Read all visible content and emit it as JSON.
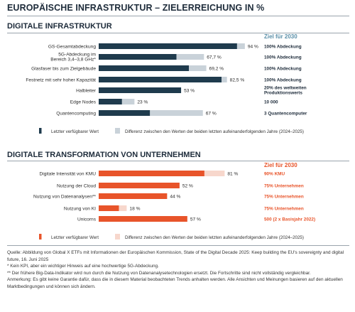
{
  "title": "EUROPÄISCHE INFRASTRUKTUR – ZIELERREICHUNG IN %",
  "colors": {
    "infra_dark": "#1f3b4d",
    "infra_light": "#c9d2d9",
    "infra_goal_head": "#5a8fa8",
    "infra_goal_text": "#1d2b3a",
    "trans_dark": "#e8542a",
    "trans_light": "#f7d7cc",
    "trans_goal": "#e8542a"
  },
  "chart_data": [
    {
      "type": "bar",
      "orientation": "horizontal",
      "stacked": true,
      "title": "DIGITALE INFRASTRUKTUR",
      "goal_header": "Ziel für 2030",
      "xlim": [
        0,
        100
      ],
      "categories": [
        "GS-Gesamtabdeckung",
        "5G-Abdeckung im Bereich 3,4–3,8 GHz*",
        "Glasfaser bis zum Zielgebäude",
        "Festnetz mit sehr hoher Kapazität",
        "Halbleiter",
        "Edge Nodes",
        "Quantencomputing"
      ],
      "category_lines": [
        [
          "GS-Gesamtabdeckung"
        ],
        [
          "5G-Abdeckung im",
          "Bereich 3,4–3,8 GHz*"
        ],
        [
          "Glasfaser bis zum Zielgebäude"
        ],
        [
          "Festnetz mit sehr hoher Kapazität"
        ],
        [
          "Halbleiter"
        ],
        [
          "Edge Nodes"
        ],
        [
          "Quantencomputing"
        ]
      ],
      "series": [
        {
          "name": "Letzter verfügbarer Wert",
          "values": [
            89,
            50,
            58,
            79,
            53,
            15,
            33
          ]
        },
        {
          "name": "Differenz zwischen den Werten der beiden letzten aufeinanderfolgenden Jahre (2024–2025)",
          "values": [
            5,
            17.7,
            11.2,
            3.5,
            0,
            8,
            34
          ]
        }
      ],
      "value_labels": [
        "94 %",
        "67,7 %",
        "69,2 %",
        "82,5 %",
        "53 %",
        "23 %",
        "67 %"
      ],
      "goals": [
        [
          "100% Abdeckung"
        ],
        [
          "100% Abdeckung"
        ],
        [
          "100% Abdeckung"
        ],
        [
          "100% Abdeckung"
        ],
        [
          "20% des weltweiten",
          "Produktionswerts"
        ],
        [
          "10 000"
        ],
        [
          "3 Quantencomputer"
        ]
      ],
      "legend": [
        "Letzter verfügbarer Wert",
        "Differenz zwischen den Werten der beiden letzten aufeinanderfolgenden Jahre (2024–2025)"
      ]
    },
    {
      "type": "bar",
      "orientation": "horizontal",
      "stacked": true,
      "title": "DIGITALE TRANSFORMATION VON UNTERNEHMEN",
      "goal_header": "Ziel für 2030",
      "xlim": [
        0,
        100
      ],
      "categories": [
        "Digitale Intensität von KMU",
        "Nutzung der Cloud",
        "Nutzung von Datenanalysen**",
        "Nutzung von KI",
        "Unicorns"
      ],
      "category_lines": [
        [
          "Digitale Intensität von KMU"
        ],
        [
          "Nutzung der Cloud"
        ],
        [
          "Nutzung von Datenanalysen**"
        ],
        [
          "Nutzung von KI"
        ],
        [
          "Unicorns"
        ]
      ],
      "series": [
        {
          "name": "Letzter verfügbarer Wert",
          "values": [
            68,
            52,
            44,
            13,
            57
          ]
        },
        {
          "name": "Differenz zwischen den Werten der beiden letzten aufeinanderfolgenden Jahre (2024–2025)",
          "values": [
            13,
            0,
            0,
            5,
            0
          ]
        }
      ],
      "value_labels": [
        "81 %",
        "52 %",
        "44 %",
        "18 %",
        "57 %"
      ],
      "goals": [
        [
          "90% KMU"
        ],
        [
          "75% Unternehmen"
        ],
        [
          "75% Unternehmen"
        ],
        [
          "75% Unternehmen"
        ],
        [
          "500 (2 x Basisjahr 2022)"
        ]
      ],
      "legend": [
        "Letzter verfügbarer Wert",
        "Differenz zwischen den Werten der beiden letzten aufeinanderfolgenden Jahre (2024–2025)"
      ]
    }
  ],
  "footnotes": [
    "Quelle: Abbildung von Global X ETFs mit Informationen der Europäischen Kommission, State of the Digital Decade 2025: Keep building the EU's sovereignty and digital future, 16. Juni 2025",
    "* Kein KPI, aber ein wichtiger Hinweis auf eine hochwertige 5G-Abdeckung.",
    "** Der frühere Big-Data-Indikator wird nun durch die Nutzung von Datenanalysetechnologien ersetzt. Die Fortschritte sind nicht vollständig vergleichbar.",
    "Anmerkung: Es gibt keine Garantie dafür, dass die in diesem Material beobachteten Trends anhalten werden. Alle Ansichten und Meinungen basieren auf den aktuellen Marktbedingungen und können sich ändern."
  ]
}
